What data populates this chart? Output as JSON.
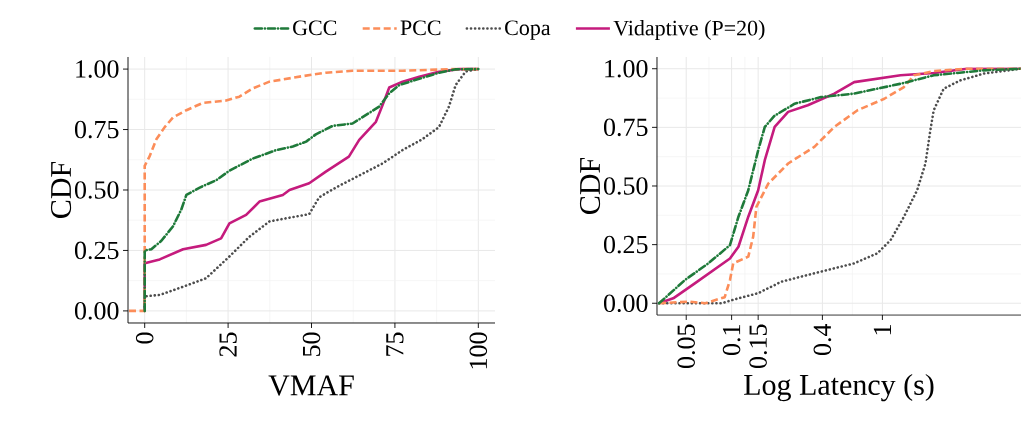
{
  "chart_data": [
    {
      "type": "line",
      "xlabel": "VMAF",
      "ylabel": "CDF",
      "xlim": [
        -5,
        105
      ],
      "ylim": [
        -0.05,
        1.05
      ],
      "xticks": [
        0,
        25,
        50,
        75,
        100
      ],
      "yticks": [
        {
          "value": 0,
          "label": "0.00"
        },
        {
          "value": 0.25,
          "label": "0.25"
        },
        {
          "value": 0.5,
          "label": "0.50"
        },
        {
          "value": 0.75,
          "label": "0.75"
        },
        {
          "value": 1,
          "label": "1.00"
        }
      ],
      "grid": true,
      "legend": "top",
      "series": [
        {
          "name": "GCC",
          "color": "#1f7a3a",
          "line_style": "dashdot",
          "x": [
            0,
            0,
            2,
            5,
            8.5,
            11,
            12.5,
            16.5,
            21.4,
            25.4,
            32.4,
            39.4,
            44.4,
            48.4,
            51.3,
            56.3,
            62.3,
            66.3,
            70.3,
            73.3,
            76.3,
            82.3,
            88.2,
            93.2,
            100
          ],
          "values": [
            0,
            0.25,
            0.255,
            0.29,
            0.35,
            0.42,
            0.48,
            0.51,
            0.54,
            0.58,
            0.63,
            0.665,
            0.68,
            0.7,
            0.73,
            0.765,
            0.775,
            0.81,
            0.845,
            0.9,
            0.934,
            0.96,
            0.985,
            0.999,
            1
          ]
        },
        {
          "name": "PCC",
          "color": "#fc8d59",
          "line_style": "dashed",
          "x": [
            -4.7,
            0,
            0,
            1.5,
            3.5,
            6,
            8.5,
            12.5,
            17.4,
            24.4,
            28.4,
            32.4,
            37.4,
            47.4,
            54.3,
            62.3,
            77.3,
            92.2,
            100
          ],
          "values": [
            0,
            0,
            0.6,
            0.64,
            0.71,
            0.76,
            0.8,
            0.83,
            0.86,
            0.87,
            0.886,
            0.92,
            0.948,
            0.971,
            0.985,
            0.993,
            0.993,
            1,
            1
          ]
        },
        {
          "name": "Copa",
          "color": "#4d4d4d",
          "line_style": "dotted",
          "x": [
            0,
            0,
            4.5,
            11.5,
            18.4,
            25.4,
            31.4,
            37.4,
            42.4,
            49.3,
            52.3,
            57.3,
            64.3,
            71.3,
            77.3,
            83.2,
            88.2,
            91.2,
            93.2,
            96.2,
            100
          ],
          "values": [
            0,
            0.06,
            0.066,
            0.1,
            0.135,
            0.225,
            0.307,
            0.37,
            0.383,
            0.4,
            0.47,
            0.51,
            0.56,
            0.61,
            0.665,
            0.71,
            0.76,
            0.845,
            0.934,
            0.99,
            1
          ]
        },
        {
          "name": "Vidaptive (P=20)",
          "color": "#c51b7d",
          "line_style": "solid",
          "x": [
            0,
            0,
            4.5,
            11.5,
            18.4,
            22.9,
            25.4,
            30.4,
            34.4,
            41.4,
            43.4,
            49.3,
            54.3,
            61.2,
            64.3,
            69.3,
            71.3,
            73.3,
            77.3,
            82.3,
            88.2,
            94.2,
            100
          ],
          "values": [
            0,
            0.197,
            0.213,
            0.255,
            0.273,
            0.3,
            0.362,
            0.397,
            0.452,
            0.479,
            0.5,
            0.528,
            0.576,
            0.638,
            0.707,
            0.782,
            0.851,
            0.924,
            0.948,
            0.968,
            0.989,
            1,
            1
          ]
        }
      ]
    },
    {
      "type": "line",
      "xlabel": "Log Latency (s)",
      "ylabel": "CDF",
      "log": "x",
      "xlim": [
        0.032,
        8.3
      ],
      "ylim": [
        -0.05,
        1.05
      ],
      "xticks": [
        0.05,
        0.1,
        0.15,
        0.4,
        1
      ],
      "yticks": [
        {
          "value": 0,
          "label": "0.00"
        },
        {
          "value": 0.25,
          "label": "0.25"
        },
        {
          "value": 0.5,
          "label": "0.50"
        },
        {
          "value": 0.75,
          "label": "0.75"
        },
        {
          "value": 1,
          "label": "1.00"
        }
      ],
      "grid": true,
      "series": [
        {
          "color": "#1f7a3a",
          "line_style": "dashdot",
          "x": [
            0.033,
            0.038,
            0.049,
            0.07,
            0.0975,
            0.111,
            0.129,
            0.15,
            0.166,
            0.193,
            0.262,
            0.392,
            0.65,
            1.32,
            2.19,
            4.68,
            8.3
          ],
          "values": [
            0,
            0.035,
            0.099,
            0.17,
            0.248,
            0.369,
            0.482,
            0.652,
            0.752,
            0.8,
            0.851,
            0.879,
            0.894,
            0.936,
            0.972,
            0.993,
            1
          ]
        },
        {
          "color": "#fc8d59",
          "line_style": "dashed",
          "x": [
            0.033,
            0.052,
            0.067,
            0.09,
            0.0975,
            0.1025,
            0.129,
            0.139,
            0.146,
            0.175,
            0.237,
            0.354,
            0.48,
            0.684,
            1.03,
            1.39,
            1.62,
            2.19,
            3.63,
            8.3
          ],
          "values": [
            0,
            0.007,
            0,
            0.026,
            0.099,
            0.17,
            0.199,
            0.284,
            0.411,
            0.51,
            0.596,
            0.667,
            0.752,
            0.823,
            0.872,
            0.922,
            0.972,
            0.99,
            1,
            1
          ]
        },
        {
          "color": "#4d4d4d",
          "line_style": "dotted",
          "x": [
            0.033,
            0.086,
            0.105,
            0.15,
            0.214,
            0.354,
            0.649,
            0.927,
            1.135,
            1.39,
            1.7,
            1.93,
            2.08,
            2.19,
            2.55,
            3.28,
            4.68,
            8.3
          ],
          "values": [
            0,
            0,
            0.017,
            0.043,
            0.092,
            0.128,
            0.17,
            0.213,
            0.27,
            0.369,
            0.482,
            0.596,
            0.738,
            0.823,
            0.915,
            0.95,
            0.979,
            1
          ]
        },
        {
          "color": "#c51b7d",
          "line_style": "solid",
          "x": [
            0.033,
            0.041,
            0.057,
            0.0975,
            0.111,
            0.129,
            0.15,
            0.166,
            0.193,
            0.237,
            0.32,
            0.48,
            0.65,
            1.32,
            2.19,
            3.63,
            8.3
          ],
          "values": [
            0,
            0.021,
            0.085,
            0.191,
            0.241,
            0.369,
            0.482,
            0.61,
            0.752,
            0.816,
            0.844,
            0.894,
            0.943,
            0.972,
            0.982,
            1,
            1
          ]
        }
      ]
    }
  ]
}
